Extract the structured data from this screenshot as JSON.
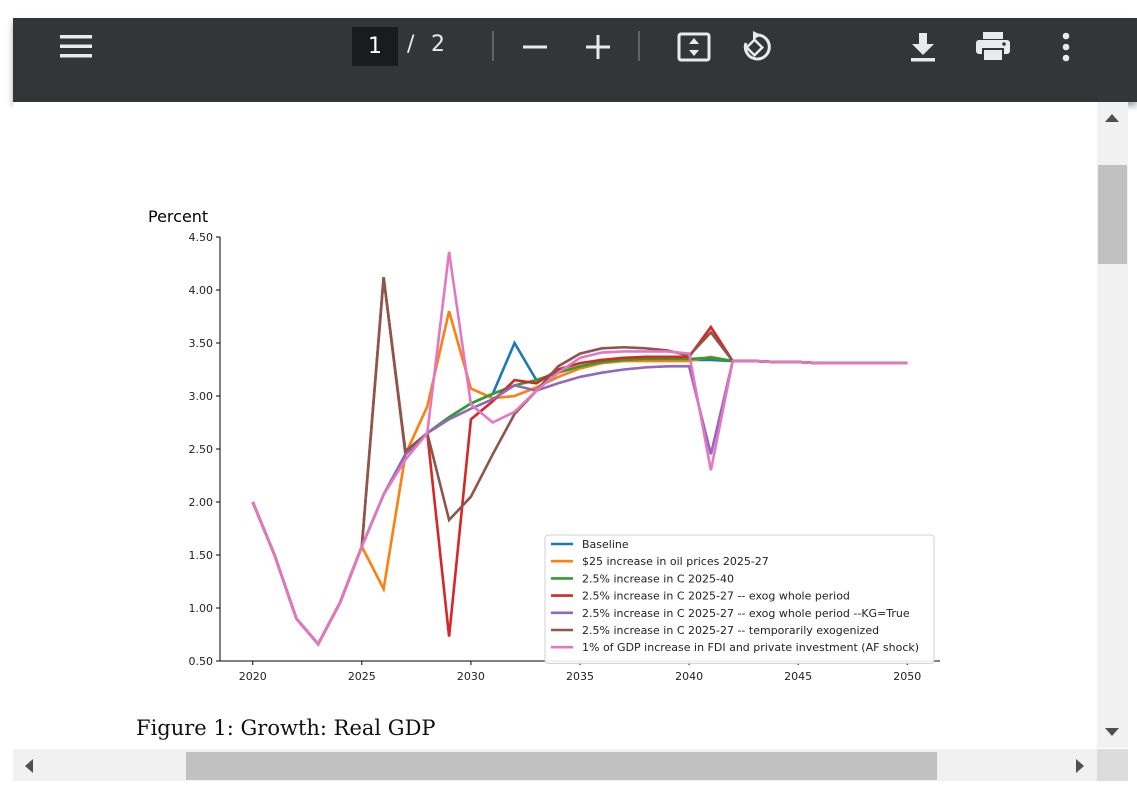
{
  "viewer": {
    "current_page": "1",
    "separator": "/",
    "total_pages": "2",
    "caption": "Figure 1:  Growth:  Real GDP"
  },
  "icons": {
    "menu": "menu-icon",
    "zoom_out": "minus-icon",
    "zoom_in": "plus-icon",
    "fit": "fit-page-icon",
    "rotate": "rotate-icon",
    "download": "download-icon",
    "print": "print-icon",
    "more": "more-vert-icon"
  },
  "colors": {
    "toolbar": "#323639",
    "scroll_track": "#f1f1f1",
    "scroll_thumb": "#c1c1c1"
  },
  "chart_data": {
    "type": "line",
    "title": "",
    "ylabel": "Percent",
    "xlabel": "",
    "xlim": [
      2018.5,
      2051.5
    ],
    "ylim": [
      0.5,
      4.5
    ],
    "xticks": [
      "2020",
      "2025",
      "2030",
      "2035",
      "2040",
      "2045",
      "2050"
    ],
    "yticks": [
      "0.50",
      "1.00",
      "1.50",
      "2.00",
      "2.50",
      "3.00",
      "3.50",
      "4.00",
      "4.50"
    ],
    "legend_position": "lower-right",
    "x": [
      2020,
      2021,
      2022,
      2023,
      2024,
      2025,
      2026,
      2027,
      2028,
      2029,
      2030,
      2031,
      2032,
      2033,
      2034,
      2035,
      2036,
      2037,
      2038,
      2039,
      2040,
      2041,
      2042,
      2043,
      2044,
      2045,
      2046,
      2047,
      2048,
      2049,
      2050
    ],
    "series": [
      {
        "name": "Baseline",
        "color": "#1f77b4",
        "values": [
          2.0,
          1.5,
          0.9,
          0.66,
          1.05,
          1.58,
          2.07,
          2.45,
          2.65,
          2.8,
          2.93,
          3.02,
          3.5,
          3.15,
          3.22,
          3.28,
          3.32,
          3.34,
          3.34,
          3.34,
          3.34,
          3.34,
          3.33,
          3.33,
          3.32,
          3.32,
          3.31,
          3.31,
          3.31,
          3.31,
          3.31
        ]
      },
      {
        "name": "$25 increase in oil prices 2025-27",
        "color": "#ff7f0e",
        "values": [
          2.0,
          1.5,
          0.9,
          0.66,
          1.05,
          1.58,
          1.18,
          2.45,
          2.9,
          3.8,
          3.07,
          2.98,
          3.0,
          3.08,
          3.18,
          3.26,
          3.31,
          3.33,
          3.33,
          3.33,
          3.33,
          3.37,
          3.33,
          3.33,
          3.32,
          3.32,
          3.31,
          3.31,
          3.31,
          3.31,
          3.31
        ]
      },
      {
        "name": "2.5% increase in C 2025-40",
        "color": "#2ca02c",
        "values": [
          2.0,
          1.5,
          0.9,
          0.66,
          1.05,
          1.58,
          2.07,
          2.45,
          2.65,
          2.8,
          2.93,
          3.02,
          3.1,
          3.15,
          3.22,
          3.28,
          3.32,
          3.34,
          3.35,
          3.35,
          3.35,
          3.36,
          3.33,
          3.33,
          3.32,
          3.32,
          3.31,
          3.31,
          3.31,
          3.31,
          3.31
        ]
      },
      {
        "name": "2.5% increase in C 2025-27 -- exog whole period",
        "color": "#d62728",
        "values": [
          2.0,
          1.5,
          0.9,
          0.66,
          1.05,
          1.58,
          4.12,
          2.45,
          2.65,
          0.73,
          2.78,
          2.95,
          3.15,
          3.12,
          3.25,
          3.31,
          3.34,
          3.36,
          3.37,
          3.37,
          3.37,
          3.65,
          3.33,
          3.33,
          3.32,
          3.32,
          3.31,
          3.31,
          3.31,
          3.31,
          3.31
        ]
      },
      {
        "name": "2.5% increase in C 2025-27 -- exog whole period --KG=True",
        "color": "#9467bd",
        "values": [
          2.0,
          1.5,
          0.9,
          0.66,
          1.05,
          1.58,
          2.07,
          2.45,
          2.65,
          2.78,
          2.88,
          2.97,
          3.1,
          3.05,
          3.12,
          3.18,
          3.22,
          3.25,
          3.27,
          3.28,
          3.28,
          2.45,
          3.33,
          3.33,
          3.32,
          3.32,
          3.31,
          3.31,
          3.31,
          3.31,
          3.31
        ]
      },
      {
        "name": "2.5% increase in C 2025-27 -- temporarily exogenized",
        "color": "#8c564b",
        "values": [
          2.0,
          1.5,
          0.9,
          0.66,
          1.05,
          1.58,
          4.12,
          2.48,
          2.65,
          1.83,
          2.05,
          2.45,
          2.83,
          3.05,
          3.28,
          3.4,
          3.45,
          3.46,
          3.45,
          3.43,
          3.38,
          3.6,
          3.33,
          3.33,
          3.32,
          3.32,
          3.31,
          3.31,
          3.31,
          3.31,
          3.31
        ]
      },
      {
        "name": "1% of GDP increase in FDI and private investment (AF shock)",
        "color": "#e377c2",
        "values": [
          2.0,
          1.5,
          0.9,
          0.66,
          1.05,
          1.58,
          2.07,
          2.4,
          2.65,
          4.36,
          2.92,
          2.75,
          2.85,
          3.05,
          3.22,
          3.36,
          3.41,
          3.42,
          3.42,
          3.42,
          3.4,
          2.3,
          3.33,
          3.33,
          3.32,
          3.32,
          3.31,
          3.31,
          3.31,
          3.31,
          3.31
        ]
      }
    ]
  }
}
